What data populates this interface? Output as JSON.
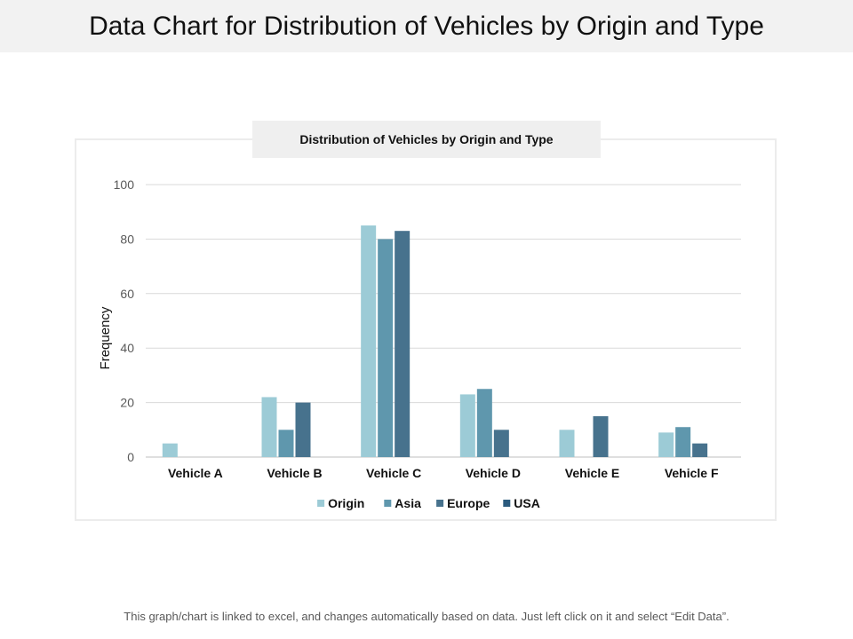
{
  "page": {
    "title": "Data Chart for Distribution of Vehicles by Origin and Type",
    "footer": "This graph/chart is linked to excel, and changes automatically based on data. Just left click on it and select “Edit Data”."
  },
  "chart_data": {
    "type": "bar",
    "title": "Distribution of Vehicles by Origin and Type",
    "xlabel": "",
    "ylabel": "Frequency",
    "ylim": [
      0,
      100
    ],
    "yticks": [
      0,
      20,
      40,
      60,
      80,
      100
    ],
    "grid": true,
    "legend_position": "bottom",
    "categories": [
      "Vehicle A",
      "Vehicle B",
      "Vehicle C",
      "Vehicle D",
      "Vehicle E",
      "Vehicle F"
    ],
    "series": [
      {
        "name": "Origin",
        "color": "#9ccbd6",
        "values": [
          5,
          22,
          85,
          23,
          10,
          9
        ]
      },
      {
        "name": "Asia",
        "color": "#5f97ad",
        "values": [
          0,
          10,
          80,
          25,
          0,
          11
        ]
      },
      {
        "name": "Europe",
        "color": "#47728d",
        "values": [
          0,
          20,
          83,
          10,
          15,
          5
        ]
      },
      {
        "name": "USA",
        "color": "#2b5b7e",
        "values": [
          0,
          0,
          0,
          0,
          0,
          0
        ]
      }
    ]
  }
}
